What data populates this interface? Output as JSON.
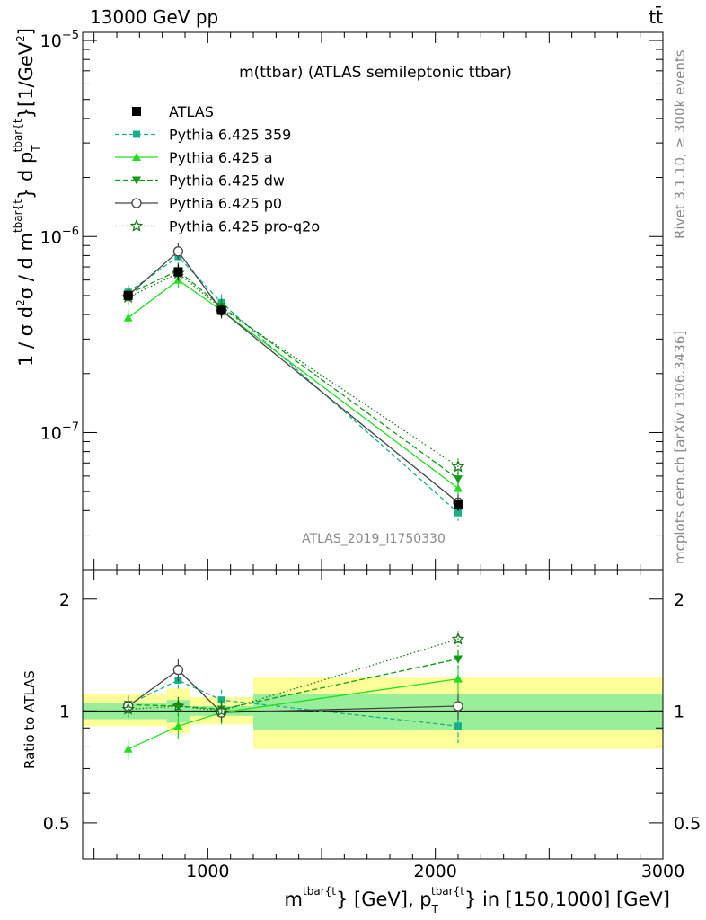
{
  "header": {
    "left": "13000 GeV pp",
    "right": "tt̄"
  },
  "side": {
    "rivet": "Rivet 3.1.10, ≥ 300k events",
    "site": "mcplots.cern.ch [arXiv:1306.3436]"
  },
  "chart_data": {
    "type": "line",
    "title": "m(ttbar) (ATLAS semileptonic ttbar)",
    "analysis_id": "ATLAS_2019_I1750330",
    "ylabel": "1 / σ d²σ / d m^{tbar{t}} d p_T^{tbar{t}} [1/GeV²]",
    "ylabel_parts": {
      "a": "1 / σ d",
      "b": "2",
      "c": "σ / d m",
      "d": "tbar{t",
      "e": "} d p",
      "f": "T",
      "g": "tbar{t",
      "h": "}[1/GeV",
      "i": "2",
      "j": "]"
    },
    "xlabel": "m^{tbar{t}} [GeV], p_T^{tbar{t}} in [150,1000] [GeV]",
    "xlabel_parts": {
      "a": "m",
      "b": "tbar{t",
      "c": "} [GeV], p",
      "d": "T",
      "e": "tbar{t",
      "f": "} in [150,1000] [GeV]"
    },
    "ratio_ylabel": "Ratio to ATLAS",
    "xlim": [
      450,
      3000
    ],
    "ylim": [
      2e-08,
      1.1e-05
    ],
    "ratio_ylim": [
      0.4,
      2.4
    ],
    "x_scale": "linear",
    "y_scale": "log",
    "ratio_y_scale": "log",
    "x_ticks": [
      1000,
      2000,
      3000
    ],
    "y_major_ticks": [
      {
        "value": 1e-07,
        "base": "10",
        "exp": "−7"
      },
      {
        "value": 1e-06,
        "base": "10",
        "exp": "−6"
      },
      {
        "value": 1e-05,
        "base": "10",
        "exp": "−5"
      }
    ],
    "ratio_ticks": [
      {
        "value": 0.5,
        "label": "0.5"
      },
      {
        "value": 1,
        "label": "1"
      },
      {
        "value": 2,
        "label": "2"
      }
    ],
    "legend_position": "top-left",
    "bins": [
      {
        "lo": 450,
        "hi": 820
      },
      {
        "lo": 820,
        "hi": 920
      },
      {
        "lo": 920,
        "hi": 1200
      },
      {
        "lo": 1200,
        "hi": 3000
      }
    ],
    "band_stat": [
      [
        0.95,
        1.05
      ],
      [
        0.93,
        1.07
      ],
      [
        0.97,
        1.03
      ],
      [
        0.89,
        1.11
      ]
    ],
    "band_total": [
      [
        0.91,
        1.11
      ],
      [
        0.87,
        1.15
      ],
      [
        0.92,
        1.09
      ],
      [
        0.79,
        1.23
      ]
    ],
    "x": [
      650,
      870,
      1060,
      2100
    ],
    "data": {
      "name": "ATLAS",
      "values": [
        5e-07,
        6.6e-07,
        4.2e-07,
        4.3e-08
      ],
      "errors": [
        4e-09,
        6e-08,
        3e-08,
        3e-09
      ]
    },
    "series": [
      {
        "name": "Pythia 6.425 359",
        "color": "#17b08c",
        "dash": "5,3",
        "marker": "square",
        "values": [
          5.2e-07,
          7.9e-07,
          4.6e-07,
          3.9e-08
        ],
        "ratio": [
          1.04,
          1.21,
          1.07,
          0.91
        ],
        "ratio_err": [
          0.06,
          0.08,
          0.07,
          0.09
        ]
      },
      {
        "name": "Pythia 6.425 a",
        "color": "#22dd22",
        "dash": "",
        "marker": "triangle-up",
        "values": [
          3.85e-07,
          6e-07,
          4.2e-07,
          5.2e-08
        ],
        "ratio": [
          0.79,
          0.91,
          0.99,
          1.22
        ],
        "ratio_err": [
          0.05,
          0.07,
          0.07,
          0.11
        ]
      },
      {
        "name": "Pythia 6.425 dw",
        "color": "#0e9d0e",
        "dash": "6,3",
        "marker": "triangle-down",
        "values": [
          5.1e-07,
          6.7e-07,
          4.4e-07,
          5.8e-08
        ],
        "ratio": [
          1.04,
          1.03,
          1.01,
          1.38
        ],
        "ratio_err": [
          0.05,
          0.06,
          0.06,
          0.08
        ]
      },
      {
        "name": "Pythia 6.425 p0",
        "color": "#444444",
        "dash": "",
        "marker": "circle",
        "values": [
          5e-07,
          8.4e-07,
          4.2e-07,
          4.4e-08
        ],
        "ratio": [
          1.03,
          1.29,
          0.99,
          1.03
        ],
        "ratio_err": [
          0.07,
          0.09,
          0.06,
          0.08
        ]
      },
      {
        "name": "Pythia 6.425 pro-q2o",
        "color": "#1a7a1a",
        "dash": "1.5,2.5",
        "marker": "star",
        "values": [
          4.9e-07,
          6.5e-07,
          4.3e-07,
          6.7e-08
        ],
        "ratio": [
          1.01,
          1.03,
          1.0,
          1.56
        ],
        "ratio_err": [
          0.05,
          0.06,
          0.06,
          0.08
        ]
      }
    ]
  }
}
